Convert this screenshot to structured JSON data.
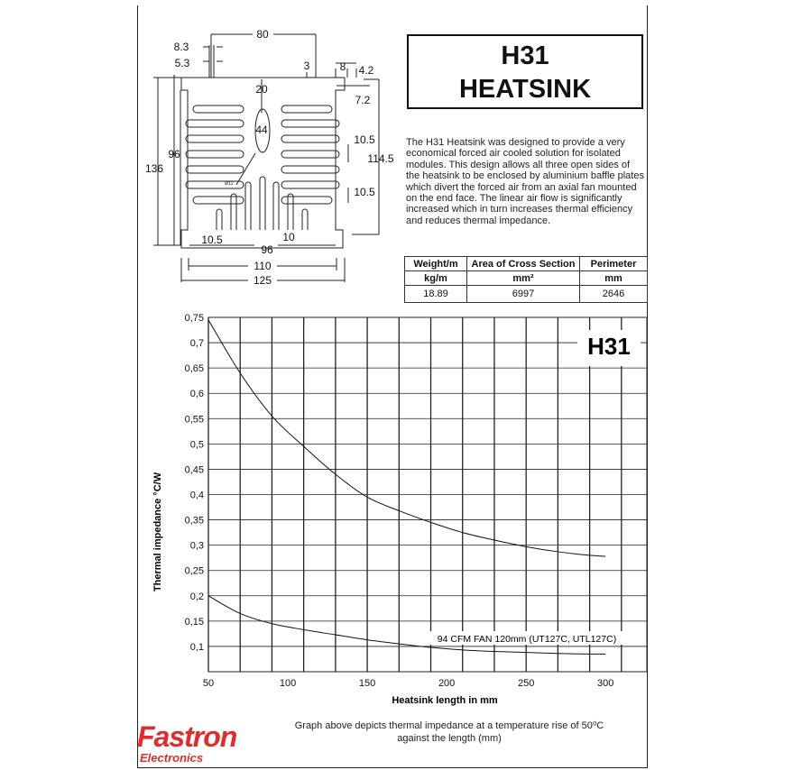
{
  "title_box": {
    "line1": "H31",
    "line2": "HEATSINK"
  },
  "description": "The H31 Heatsink was designed to provide a very economical forced air cooled solution for isolated modules.  This design allows all three open sides of the heatsink to be enclosed by aluminium baffle plates which divert the forced air from an axial fan mounted on the end face. The linear air flow is significantly increased which in turn increases thermal efficiency and reduces thermal impedance.",
  "spec_table": {
    "headers": [
      "Weight/m",
      "Area of Cross Section",
      "Perimeter"
    ],
    "units": [
      "kg/m",
      "mm²",
      "mm"
    ],
    "values": [
      "18.89",
      "6997",
      "2646"
    ]
  },
  "drawing": {
    "dims": {
      "d80": "80",
      "d8_3": "8.3",
      "d5_3": "5.3",
      "d3": "3",
      "d8": "8",
      "d4_2": "4.2",
      "d7_2": "7.2",
      "d20": "20",
      "d44": "44",
      "d96_left": "96",
      "d136": "136",
      "d114_5": "114.5",
      "d10_5_a": "10.5",
      "d10_5_b": "10.5",
      "d10_5_c": "10.5",
      "d10": "10",
      "d96_bottom": "96",
      "d110": "110",
      "d125": "125",
      "d_dia12": "Ø12"
    }
  },
  "chart_data": {
    "type": "line",
    "label": "H31",
    "xlabel": "Heatsink length in mm",
    "ylabel": "Thermal impedance °C/W",
    "xlim": [
      50,
      326
    ],
    "ylim": [
      0.05,
      0.75
    ],
    "xticks": [
      50,
      100,
      150,
      200,
      250,
      300
    ],
    "yticks": [
      "0,75",
      "0,7",
      "0,65",
      "0,6",
      "0,55",
      "0,5",
      "0,45",
      "0,4",
      "0,35",
      "0,3",
      "0,25",
      "0,2",
      "0,15",
      "0,1"
    ],
    "grid": true,
    "x": [
      50,
      70,
      90,
      110,
      130,
      150,
      170,
      190,
      210,
      230,
      250,
      270,
      290,
      300
    ],
    "series": [
      {
        "values": [
          0.745,
          0.64,
          0.555,
          0.495,
          0.44,
          0.395,
          0.368,
          0.345,
          0.325,
          0.31,
          0.297,
          0.287,
          0.28,
          0.278
        ]
      },
      {
        "name": "94 CFM FAN 120mm (UT127C, UTL127C)",
        "values": [
          0.2,
          0.165,
          0.145,
          0.133,
          0.123,
          0.113,
          0.105,
          0.098,
          0.093,
          0.09,
          0.088,
          0.086,
          0.085,
          0.085
        ]
      }
    ]
  },
  "caption": {
    "line1": "Graph above depicts thermal impedance at a temperature rise of 50⁰C",
    "line2": "against the length (mm)"
  },
  "logo": {
    "name": "Fastron",
    "sub": "Electronics",
    "color": "#e32b2b"
  }
}
